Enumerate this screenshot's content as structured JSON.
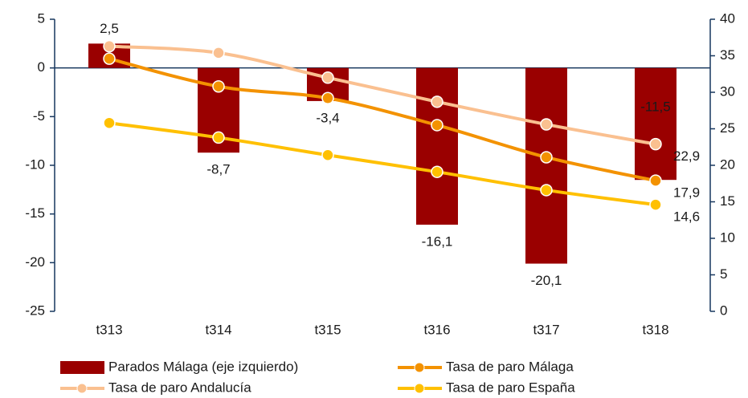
{
  "chart_data": {
    "type": "bar_line",
    "categories": [
      "t313",
      "t314",
      "t315",
      "t316",
      "t317",
      "t318"
    ],
    "ylim": [
      -25,
      5
    ],
    "yticks": [
      -25,
      -20,
      -15,
      -10,
      -5,
      0,
      5
    ],
    "y2lim": [
      0,
      40
    ],
    "y2ticks": [
      0,
      5,
      10,
      15,
      20,
      25,
      30,
      35,
      40
    ],
    "series": [
      {
        "name": "Parados Málaga (eje izquierdo)",
        "type": "bar",
        "color": "#9a0000",
        "values": [
          2.5,
          -8.7,
          -3.4,
          -16.1,
          -20.1,
          -11.5
        ],
        "value_labels": [
          "2,5",
          "-8,7",
          "-3,4",
          "-16,1",
          "-20,1",
          "-11,5"
        ]
      },
      {
        "name": "Tasa de paro Málaga",
        "type": "line",
        "axis": "y2",
        "color": "#f39200",
        "values": [
          34.6,
          30.8,
          29.2,
          25.5,
          21.1,
          17.9
        ],
        "value_labels": [
          null,
          null,
          null,
          null,
          null,
          "17,9"
        ]
      },
      {
        "name": "Tasa de paro Andalucía",
        "type": "line",
        "axis": "y2",
        "color": "#fac090",
        "values": [
          36.3,
          35.4,
          32.0,
          28.7,
          25.6,
          22.9
        ],
        "value_labels": [
          null,
          null,
          null,
          null,
          null,
          "22,9"
        ]
      },
      {
        "name": "Tasa de paro España",
        "type": "line",
        "axis": "y2",
        "color": "#ffc000",
        "values": [
          25.8,
          23.8,
          21.4,
          19.1,
          16.6,
          14.6
        ],
        "value_labels": [
          null,
          null,
          null,
          null,
          null,
          "14,6"
        ]
      }
    ]
  }
}
